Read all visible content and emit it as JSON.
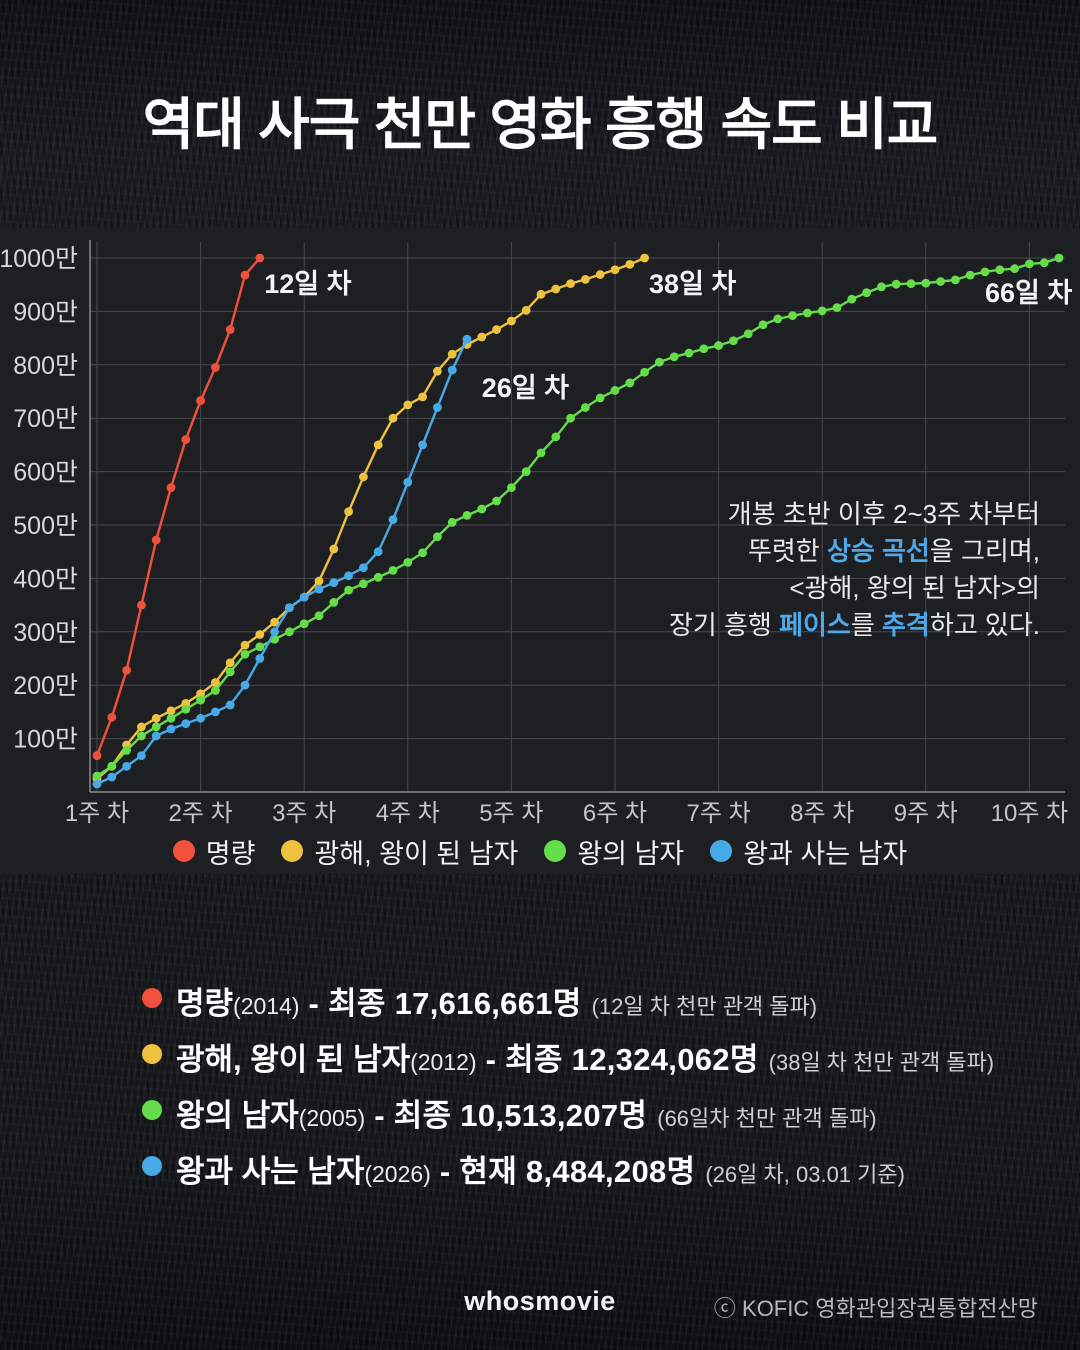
{
  "chart_data": {
    "type": "line",
    "title": "역대 사극 천만 영화 흥행 속도 비교",
    "x_axis": {
      "unit": "주 차 (weeks since release, 7 days per tick)",
      "tick_labels": [
        "1주 차",
        "2주 차",
        "3주 차",
        "4주 차",
        "5주 차",
        "6주 차",
        "7주 차",
        "8주 차",
        "9주 차",
        "10주 차"
      ]
    },
    "y_axis": {
      "unit": "만 명 (cumulative admissions, 10,000s)",
      "tick_labels": [
        "100만",
        "200만",
        "300만",
        "400만",
        "500만",
        "600만",
        "700만",
        "800만",
        "900만",
        "1000만"
      ],
      "min": 0,
      "max": 1040,
      "grid": true
    },
    "style": {
      "grid_color": "#46484d",
      "axis_color": "#8a8b8e",
      "y_label_color": "#d8d8d8",
      "x_label_color": "#c6c6c6",
      "panel_bg": "#1e1f23"
    },
    "series": [
      {
        "name": "명량",
        "color": "#f0503c",
        "days": 12,
        "daily_cumulative_man": [
          68,
          140,
          228,
          350,
          472,
          570,
          660,
          733,
          795,
          866,
          968,
          1000
        ]
      },
      {
        "name": "광해, 왕이 된 남자",
        "color": "#eec13e",
        "days": 38,
        "daily_cumulative_man": [
          25,
          48,
          88,
          122,
          138,
          152,
          166,
          184,
          205,
          242,
          275,
          295,
          318,
          345,
          365,
          395,
          455,
          525,
          590,
          650,
          700,
          725,
          740,
          788,
          820,
          838,
          852,
          866,
          882,
          902,
          932,
          942,
          952,
          960,
          969,
          978,
          988,
          1000
        ]
      },
      {
        "name": "왕의 남자",
        "color": "#65dd4b",
        "days": 66,
        "daily_cumulative_man": [
          30,
          48,
          78,
          105,
          122,
          138,
          155,
          172,
          190,
          225,
          258,
          272,
          286,
          300,
          315,
          330,
          355,
          378,
          390,
          402,
          415,
          430,
          448,
          478,
          505,
          518,
          530,
          545,
          570,
          600,
          635,
          665,
          700,
          720,
          738,
          752,
          766,
          786,
          805,
          815,
          822,
          830,
          836,
          845,
          858,
          875,
          886,
          892,
          897,
          901,
          907,
          923,
          935,
          946,
          951,
          952,
          953,
          956,
          959,
          968,
          974,
          978,
          980,
          989,
          991,
          1000
        ]
      },
      {
        "name": "왕과 사는 남자",
        "color": "#47aae6",
        "days": 26,
        "daily_cumulative_man": [
          15,
          28,
          48,
          68,
          105,
          118,
          128,
          138,
          150,
          163,
          200,
          250,
          300,
          345,
          365,
          380,
          392,
          405,
          420,
          450,
          510,
          580,
          650,
          720,
          790,
          848
        ]
      }
    ],
    "annotations": [
      {
        "label": "12일 차",
        "day": 12.3,
        "value_man": 934
      },
      {
        "label": "38일 차",
        "day": 38.3,
        "value_man": 934
      },
      {
        "label": "26일 차",
        "day": 27.0,
        "value_man": 740
      },
      {
        "label": "66일 차",
        "day": 61.0,
        "value_man": 918
      }
    ],
    "callout": {
      "highlight_color": "#4fa8e8",
      "lines": [
        [
          {
            "text": "개봉 초반 이후 2~3주 차부터",
            "highlight": false
          }
        ],
        [
          {
            "text": "뚜렷한 ",
            "highlight": false
          },
          {
            "text": "상승 곡선",
            "highlight": true
          },
          {
            "text": "을 그리며,",
            "highlight": false
          }
        ],
        [
          {
            "text": "<광해, 왕의 된 남자>의",
            "highlight": false
          }
        ],
        [
          {
            "text": "장기 흥행 ",
            "highlight": false
          },
          {
            "text": "페이스",
            "highlight": true
          },
          {
            "text": "를 ",
            "highlight": false
          },
          {
            "text": "추격",
            "highlight": true
          },
          {
            "text": "하고 있다.",
            "highlight": false
          }
        ]
      ]
    },
    "legend_position": "bottom-center"
  },
  "stats": [
    {
      "color": "#f0503c",
      "name": "명량",
      "year": "(2014)",
      "detail": "- 최종 17,616,661명",
      "note": "(12일 차 천만 관객 돌파)"
    },
    {
      "color": "#eec13e",
      "name": "광해, 왕이 된 남자",
      "year": "(2012)",
      "detail": "- 최종 12,324,062명",
      "note": "(38일 차 천만 관객 돌파)"
    },
    {
      "color": "#65dd4b",
      "name": "왕의 남자",
      "year": "(2005)",
      "detail": "- 최종 10,513,207명",
      "note": "(66일차 천만 관객 돌파)"
    },
    {
      "color": "#47aae6",
      "name": "왕과 사는 남자",
      "year": "(2026)",
      "detail": "- 현재 8,484,208명",
      "note": "(26일 차, 03.01 기준)"
    }
  ],
  "footer": {
    "brand": "whosmovie",
    "source": "ⓒ KOFIC 영화관입장권통합전산망"
  }
}
